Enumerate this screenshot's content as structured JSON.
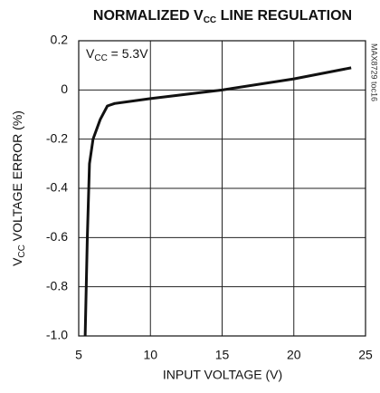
{
  "chart_data": {
    "type": "line",
    "title": [
      "NORMALIZED V",
      "CC",
      " LINE REGULATION"
    ],
    "x_label": "INPUT VOLTAGE (V)",
    "y_label": [
      "V",
      "CC",
      " VOLTAGE ERROR (%)"
    ],
    "annotation": [
      "V",
      "CC",
      " = 5.3V"
    ],
    "side_label": "MAX8729 toc16",
    "x": [
      5.45,
      5.6,
      5.75,
      6.0,
      6.5,
      7.0,
      7.5,
      10,
      15,
      20,
      24
    ],
    "series": [
      {
        "color": "#111111",
        "values": [
          -1.0,
          -0.6,
          -0.3,
          -0.2,
          -0.12,
          -0.065,
          -0.055,
          -0.035,
          0,
          0.045,
          0.09
        ]
      }
    ],
    "xlim": [
      5,
      25
    ],
    "xticks": [
      5,
      10,
      15,
      20,
      25
    ],
    "ylim": [
      -1,
      0.2
    ],
    "yticks": [
      0.2,
      0,
      -0.2,
      -0.4,
      -0.6,
      -0.8,
      {
        "value": -1,
        "label": "-1.0"
      }
    ],
    "grid": true
  }
}
